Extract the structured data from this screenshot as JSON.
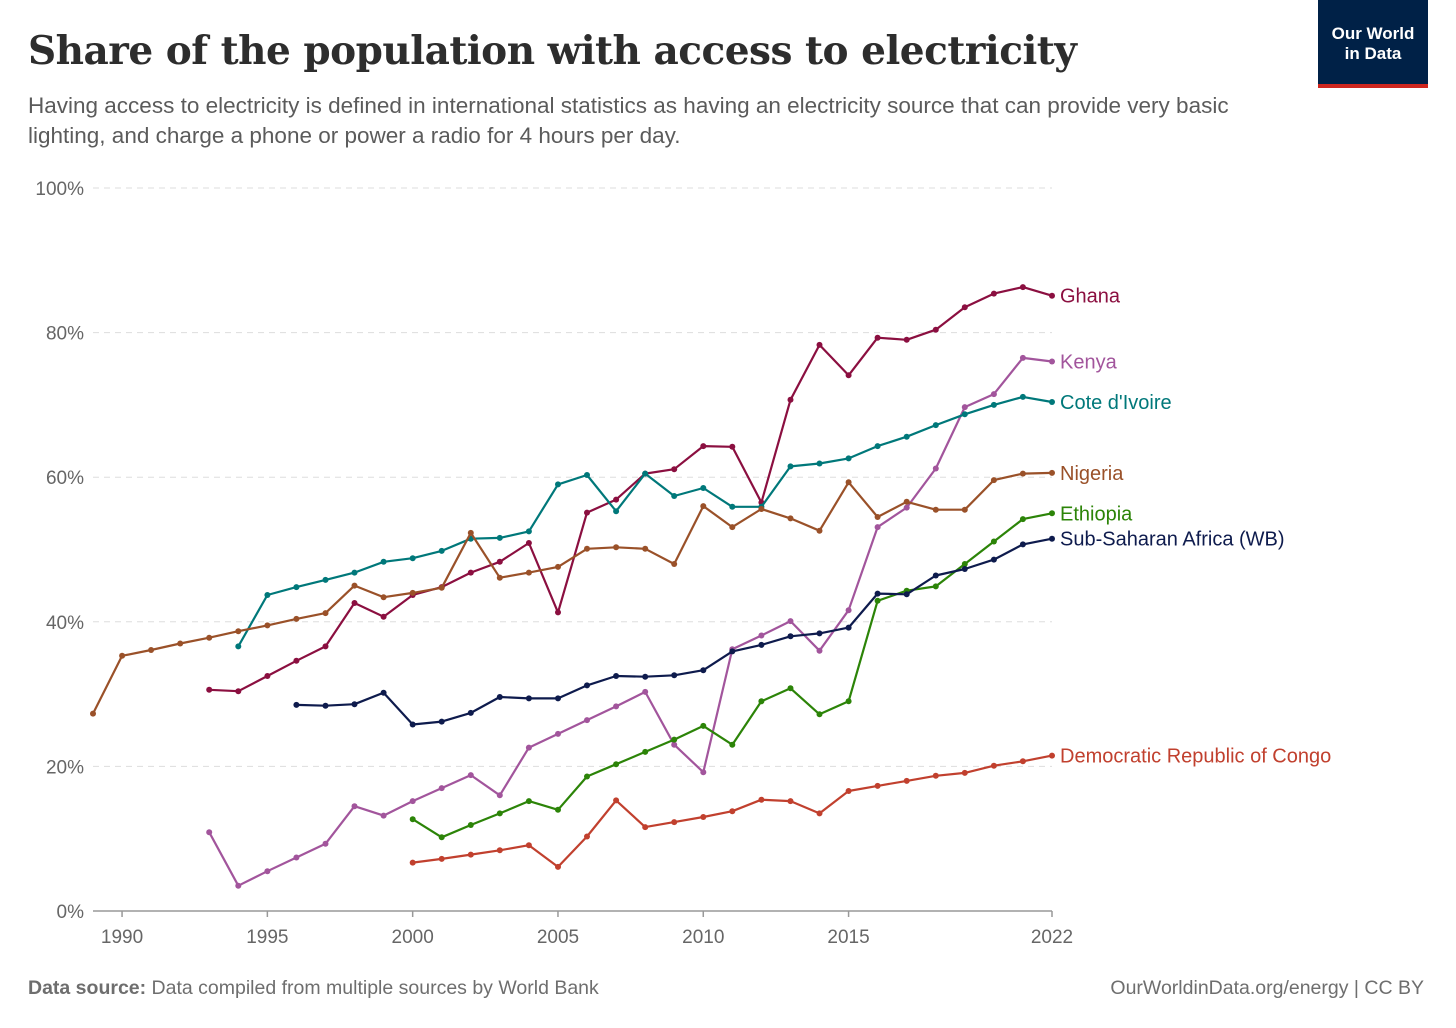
{
  "header": {
    "title": "Share of the population with access to electricity",
    "subtitle": "Having access to electricity is defined in international statistics as having an electricity source that can provide very basic lighting, and charge a phone or power a radio for 4 hours per day.",
    "logo_line1": "Our World",
    "logo_line2": "in Data"
  },
  "footer": {
    "source_label": "Data source:",
    "source_text": " Data compiled from multiple sources by World Bank",
    "credit": "OurWorldinData.org/energy | CC BY"
  },
  "colors": {
    "grid": "#dddddd",
    "axis": "#999999"
  },
  "chart_data": {
    "type": "line",
    "title": "Share of the population with access to electricity",
    "xlabel": "",
    "ylabel": "",
    "xlim": [
      1989,
      2022
    ],
    "ylim": [
      0,
      100
    ],
    "x_ticks": [
      1990,
      1995,
      2000,
      2005,
      2010,
      2015,
      2022
    ],
    "y_ticks": [
      0,
      20,
      40,
      60,
      80,
      100
    ],
    "y_tick_labels": [
      "0%",
      "20%",
      "40%",
      "60%",
      "80%",
      "100%"
    ],
    "grid": true,
    "legend": "inline-right",
    "series": [
      {
        "name": "Ghana",
        "color": "#8b0f40",
        "x": [
          1993,
          1994,
          1995,
          1996,
          1997,
          1998,
          1999,
          2000,
          2001,
          2002,
          2003,
          2004,
          2005,
          2006,
          2007,
          2008,
          2009,
          2010,
          2011,
          2012,
          2013,
          2014,
          2015,
          2016,
          2017,
          2018,
          2019,
          2020,
          2021,
          2022
        ],
        "y": [
          30.6,
          30.4,
          32.5,
          34.6,
          36.6,
          42.6,
          40.7,
          43.7,
          44.8,
          46.8,
          48.3,
          50.9,
          41.3,
          55.1,
          56.9,
          60.5,
          61.1,
          64.3,
          64.2,
          56.5,
          70.7,
          78.3,
          74.1,
          79.3,
          79.0,
          80.4,
          83.5,
          85.4,
          86.3,
          85.1
        ]
      },
      {
        "name": "Kenya",
        "color": "#a2559c",
        "x": [
          1993,
          1994,
          1995,
          1996,
          1997,
          1998,
          1999,
          2000,
          2001,
          2002,
          2003,
          2004,
          2005,
          2006,
          2007,
          2008,
          2009,
          2010,
          2011,
          2012,
          2013,
          2014,
          2015,
          2016,
          2017,
          2018,
          2019,
          2020,
          2021,
          2022
        ],
        "y": [
          10.9,
          3.5,
          5.5,
          7.4,
          9.3,
          14.5,
          13.2,
          15.2,
          17.0,
          18.8,
          16.0,
          22.6,
          24.5,
          26.4,
          28.3,
          30.3,
          23.0,
          19.2,
          36.2,
          38.1,
          40.1,
          36.0,
          41.6,
          53.1,
          55.8,
          61.2,
          69.7,
          71.5,
          76.5,
          76.0
        ]
      },
      {
        "name": "Cote d'Ivoire",
        "color": "#00787a",
        "x": [
          1994,
          1995,
          1996,
          1997,
          1998,
          1999,
          2000,
          2001,
          2002,
          2003,
          2004,
          2005,
          2006,
          2007,
          2008,
          2009,
          2010,
          2011,
          2012,
          2013,
          2014,
          2015,
          2016,
          2017,
          2018,
          2019,
          2020,
          2021,
          2022
        ],
        "y": [
          36.6,
          43.7,
          44.8,
          45.8,
          46.8,
          48.3,
          48.8,
          49.8,
          51.5,
          51.6,
          52.5,
          59.0,
          60.3,
          55.3,
          60.5,
          57.4,
          58.5,
          55.9,
          55.9,
          61.5,
          61.9,
          62.6,
          64.3,
          65.6,
          67.2,
          68.7,
          70.0,
          71.1,
          70.4
        ]
      },
      {
        "name": "Nigeria",
        "color": "#9a5129",
        "x": [
          1989,
          1990,
          1991,
          1992,
          1993,
          1994,
          1995,
          1996,
          1997,
          1998,
          1999,
          2000,
          2001,
          2002,
          2003,
          2004,
          2005,
          2006,
          2007,
          2008,
          2009,
          2010,
          2011,
          2012,
          2013,
          2014,
          2015,
          2016,
          2017,
          2018,
          2019,
          2020,
          2021,
          2022
        ],
        "y": [
          27.3,
          35.3,
          36.1,
          37.0,
          37.8,
          38.7,
          39.5,
          40.4,
          41.2,
          45.0,
          43.4,
          44.0,
          44.7,
          52.3,
          46.1,
          46.8,
          47.6,
          50.1,
          50.3,
          50.1,
          48.0,
          56.0,
          53.1,
          55.6,
          54.3,
          52.6,
          59.3,
          54.5,
          56.6,
          55.5,
          55.5,
          59.6,
          60.5,
          60.6
        ]
      },
      {
        "name": "Ethiopia",
        "color": "#2c8408",
        "x": [
          2000,
          2001,
          2002,
          2003,
          2004,
          2005,
          2006,
          2007,
          2008,
          2009,
          2010,
          2011,
          2012,
          2013,
          2014,
          2015,
          2016,
          2017,
          2018,
          2019,
          2020,
          2021,
          2022
        ],
        "y": [
          12.7,
          10.2,
          11.9,
          13.5,
          15.2,
          14.0,
          18.6,
          20.3,
          22.0,
          23.7,
          25.6,
          23.0,
          29.0,
          30.8,
          27.2,
          29.0,
          42.9,
          44.3,
          44.9,
          48.0,
          51.1,
          54.2,
          55.0
        ]
      },
      {
        "name": "Sub-Saharan Africa (WB)",
        "color": "#0e1b4d",
        "x": [
          1996,
          1997,
          1998,
          1999,
          2000,
          2001,
          2002,
          2003,
          2004,
          2005,
          2006,
          2007,
          2008,
          2009,
          2010,
          2011,
          2012,
          2013,
          2014,
          2015,
          2016,
          2017,
          2018,
          2019,
          2020,
          2021,
          2022
        ],
        "y": [
          28.5,
          28.4,
          28.6,
          30.2,
          25.8,
          26.2,
          27.4,
          29.6,
          29.4,
          29.4,
          31.2,
          32.5,
          32.4,
          32.6,
          33.3,
          35.9,
          36.8,
          38.0,
          38.4,
          39.2,
          43.9,
          43.8,
          46.4,
          47.3,
          48.6,
          50.7,
          51.5
        ]
      },
      {
        "name": "Democratic Republic of Congo",
        "color": "#c1402e",
        "x": [
          2000,
          2001,
          2002,
          2003,
          2004,
          2005,
          2006,
          2007,
          2008,
          2009,
          2010,
          2011,
          2012,
          2013,
          2014,
          2015,
          2016,
          2017,
          2018,
          2019,
          2020,
          2021,
          2022
        ],
        "y": [
          6.7,
          7.2,
          7.8,
          8.4,
          9.1,
          6.1,
          10.3,
          15.3,
          11.6,
          12.3,
          13.0,
          13.8,
          15.4,
          15.2,
          13.5,
          16.6,
          17.3,
          18.0,
          18.7,
          19.1,
          20.1,
          20.7,
          21.5
        ]
      }
    ]
  }
}
